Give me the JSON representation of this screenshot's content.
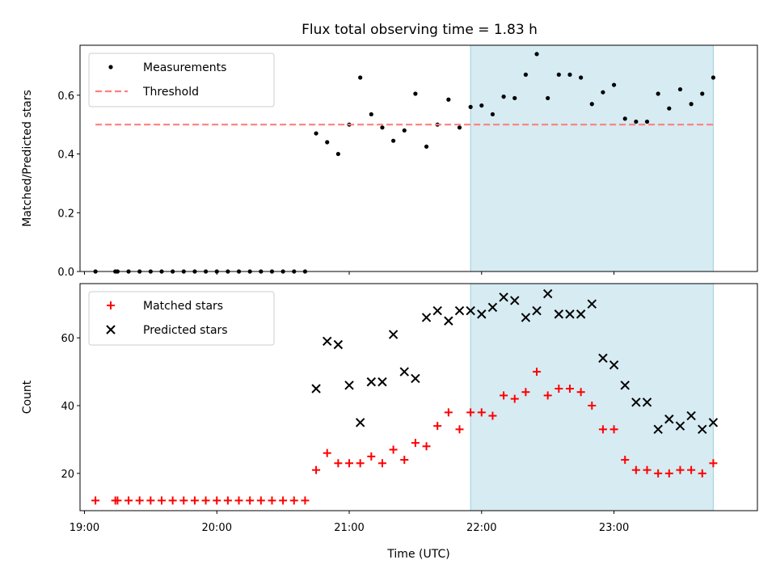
{
  "chart_data": [
    {
      "type": "scatter",
      "title": "Flux total observing time = 1.83 h",
      "xlabel": "",
      "ylabel": "Matched/Predicted stars",
      "ylim": [
        0.0,
        0.77
      ],
      "xlim": [
        "18:58",
        "24:05"
      ],
      "yticks": [
        "0.0",
        "0.2",
        "0.4",
        "0.6"
      ],
      "grid": false,
      "legend_placement": "upper-left",
      "shaded_span": {
        "x": [
          "21:55",
          "23:45"
        ],
        "color": "#add8e6"
      },
      "series": [
        {
          "name": "Measurements",
          "marker": "dot",
          "color": "#000000",
          "points": [
            [
              "19:05",
              0.0
            ],
            [
              "19:14",
              0.0
            ],
            [
              "19:15",
              0.0
            ],
            [
              "19:20",
              0.0
            ],
            [
              "19:25",
              0.0
            ],
            [
              "19:30",
              0.0
            ],
            [
              "19:35",
              0.0
            ],
            [
              "19:40",
              0.0
            ],
            [
              "19:45",
              0.0
            ],
            [
              "19:50",
              0.0
            ],
            [
              "19:55",
              0.0
            ],
            [
              "20:00",
              0.0
            ],
            [
              "20:05",
              0.0
            ],
            [
              "20:10",
              0.0
            ],
            [
              "20:15",
              0.0
            ],
            [
              "20:20",
              0.0
            ],
            [
              "20:25",
              0.0
            ],
            [
              "20:30",
              0.0
            ],
            [
              "20:35",
              0.0
            ],
            [
              "20:40",
              0.0
            ],
            [
              "20:45",
              0.47
            ],
            [
              "20:50",
              0.44
            ],
            [
              "20:55",
              0.4
            ],
            [
              "21:00",
              0.5
            ],
            [
              "21:05",
              0.66
            ],
            [
              "21:10",
              0.535
            ],
            [
              "21:15",
              0.49
            ],
            [
              "21:20",
              0.445
            ],
            [
              "21:25",
              0.48
            ],
            [
              "21:30",
              0.605
            ],
            [
              "21:35",
              0.425
            ],
            [
              "21:40",
              0.5
            ],
            [
              "21:45",
              0.585
            ],
            [
              "21:50",
              0.49
            ],
            [
              "21:55",
              0.56
            ],
            [
              "22:00",
              0.565
            ],
            [
              "22:05",
              0.535
            ],
            [
              "22:10",
              0.595
            ],
            [
              "22:15",
              0.59
            ],
            [
              "22:20",
              0.67
            ],
            [
              "22:25",
              0.74
            ],
            [
              "22:30",
              0.59
            ],
            [
              "22:35",
              0.67
            ],
            [
              "22:40",
              0.67
            ],
            [
              "22:45",
              0.66
            ],
            [
              "22:50",
              0.57
            ],
            [
              "22:55",
              0.61
            ],
            [
              "23:00",
              0.635
            ],
            [
              "23:05",
              0.52
            ],
            [
              "23:10",
              0.51
            ],
            [
              "23:15",
              0.51
            ],
            [
              "23:20",
              0.605
            ],
            [
              "23:25",
              0.555
            ],
            [
              "23:30",
              0.62
            ],
            [
              "23:35",
              0.57
            ],
            [
              "23:40",
              0.605
            ],
            [
              "23:45",
              0.66
            ]
          ]
        },
        {
          "name": "Threshold",
          "marker": "dashed-line",
          "color": "#ff7f7f",
          "points": [
            [
              "19:05",
              0.5
            ],
            [
              "23:45",
              0.5
            ]
          ]
        }
      ]
    },
    {
      "type": "scatter",
      "title": "",
      "xlabel": "Time (UTC)",
      "ylabel": "Count",
      "ylim": [
        9,
        76
      ],
      "xlim": [
        "18:58",
        "24:05"
      ],
      "xticks": [
        "19:00",
        "20:00",
        "21:00",
        "22:00",
        "23:00"
      ],
      "yticks": [
        "20",
        "40",
        "60"
      ],
      "grid": false,
      "legend_placement": "upper-left",
      "shaded_span": {
        "x": [
          "21:55",
          "23:45"
        ],
        "color": "#add8e6"
      },
      "series": [
        {
          "name": "Matched stars",
          "marker": "plus",
          "color": "#ff0000",
          "points": [
            [
              "19:05",
              12
            ],
            [
              "19:14",
              12
            ],
            [
              "19:15",
              12
            ],
            [
              "19:20",
              12
            ],
            [
              "19:25",
              12
            ],
            [
              "19:30",
              12
            ],
            [
              "19:35",
              12
            ],
            [
              "19:40",
              12
            ],
            [
              "19:45",
              12
            ],
            [
              "19:50",
              12
            ],
            [
              "19:55",
              12
            ],
            [
              "20:00",
              12
            ],
            [
              "20:05",
              12
            ],
            [
              "20:10",
              12
            ],
            [
              "20:15",
              12
            ],
            [
              "20:20",
              12
            ],
            [
              "20:25",
              12
            ],
            [
              "20:30",
              12
            ],
            [
              "20:35",
              12
            ],
            [
              "20:40",
              12
            ],
            [
              "20:45",
              21
            ],
            [
              "20:50",
              26
            ],
            [
              "20:55",
              23
            ],
            [
              "21:00",
              23
            ],
            [
              "21:05",
              23
            ],
            [
              "21:10",
              25
            ],
            [
              "21:15",
              23
            ],
            [
              "21:20",
              27
            ],
            [
              "21:25",
              24
            ],
            [
              "21:30",
              29
            ],
            [
              "21:35",
              28
            ],
            [
              "21:40",
              34
            ],
            [
              "21:45",
              38
            ],
            [
              "21:50",
              33
            ],
            [
              "21:55",
              38
            ],
            [
              "22:00",
              38
            ],
            [
              "22:05",
              37
            ],
            [
              "22:10",
              43
            ],
            [
              "22:15",
              42
            ],
            [
              "22:20",
              44
            ],
            [
              "22:25",
              50
            ],
            [
              "22:30",
              43
            ],
            [
              "22:35",
              45
            ],
            [
              "22:40",
              45
            ],
            [
              "22:45",
              44
            ],
            [
              "22:50",
              40
            ],
            [
              "22:55",
              33
            ],
            [
              "23:00",
              33
            ],
            [
              "23:05",
              24
            ],
            [
              "23:10",
              21
            ],
            [
              "23:15",
              21
            ],
            [
              "23:20",
              20
            ],
            [
              "23:25",
              20
            ],
            [
              "23:30",
              21
            ],
            [
              "23:35",
              21
            ],
            [
              "23:40",
              20
            ],
            [
              "23:45",
              23
            ]
          ]
        },
        {
          "name": "Predicted stars",
          "marker": "x",
          "color": "#000000",
          "points": [
            [
              "20:45",
              45
            ],
            [
              "20:50",
              59
            ],
            [
              "20:55",
              58
            ],
            [
              "21:00",
              46
            ],
            [
              "21:05",
              35
            ],
            [
              "21:10",
              47
            ],
            [
              "21:15",
              47
            ],
            [
              "21:20",
              61
            ],
            [
              "21:25",
              50
            ],
            [
              "21:30",
              48
            ],
            [
              "21:35",
              66
            ],
            [
              "21:40",
              68
            ],
            [
              "21:45",
              65
            ],
            [
              "21:50",
              68
            ],
            [
              "21:55",
              68
            ],
            [
              "22:00",
              67
            ],
            [
              "22:05",
              69
            ],
            [
              "22:10",
              72
            ],
            [
              "22:15",
              71
            ],
            [
              "22:20",
              66
            ],
            [
              "22:25",
              68
            ],
            [
              "22:30",
              73
            ],
            [
              "22:35",
              67
            ],
            [
              "22:40",
              67
            ],
            [
              "22:45",
              67
            ],
            [
              "22:50",
              70
            ],
            [
              "22:55",
              54
            ],
            [
              "23:00",
              52
            ],
            [
              "23:05",
              46
            ],
            [
              "23:10",
              41
            ],
            [
              "23:15",
              41
            ],
            [
              "23:20",
              33
            ],
            [
              "23:25",
              36
            ],
            [
              "23:30",
              34
            ],
            [
              "23:35",
              37
            ],
            [
              "23:40",
              33
            ],
            [
              "23:45",
              35
            ]
          ]
        }
      ]
    }
  ]
}
